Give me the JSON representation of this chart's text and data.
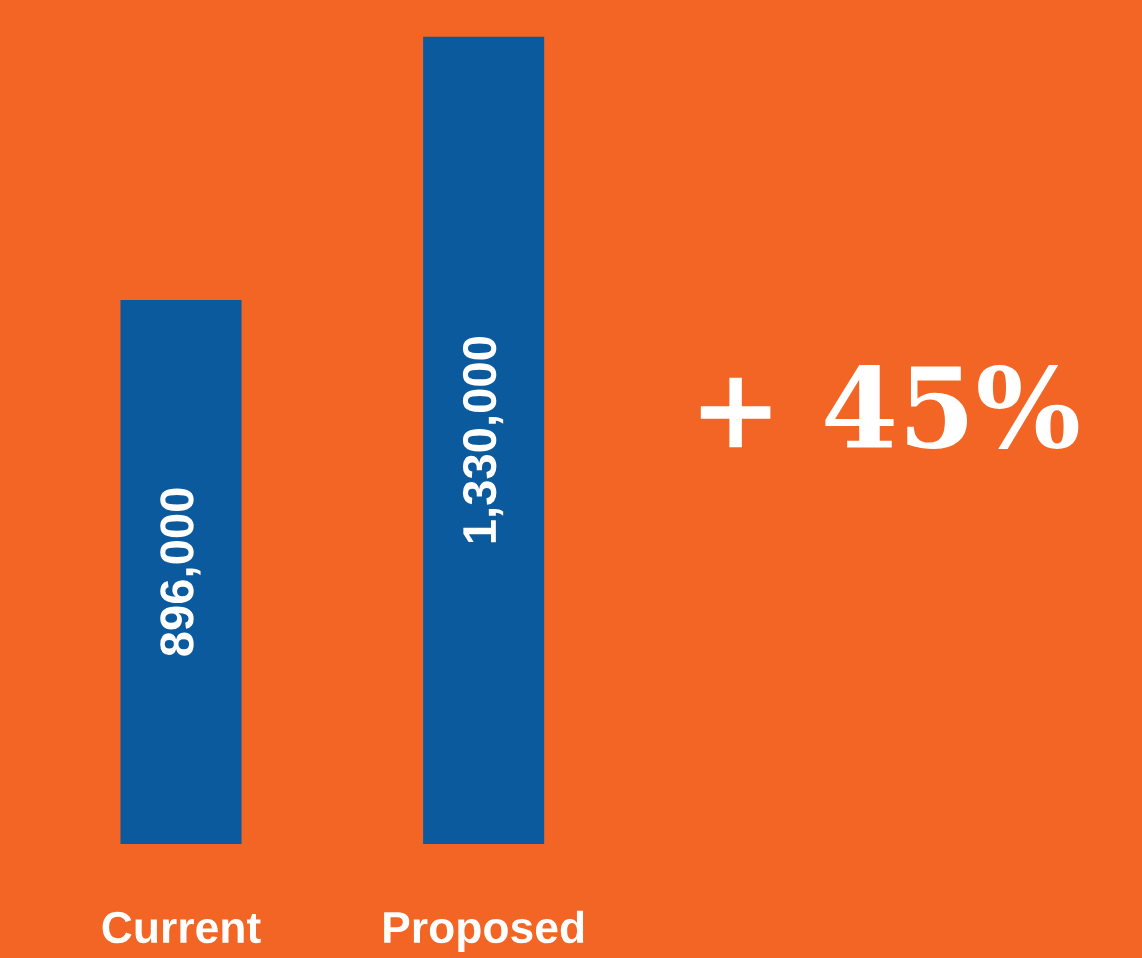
{
  "chart_data": {
    "type": "bar",
    "categories": [
      "Current",
      "Proposed"
    ],
    "values": [
      896000,
      1330000
    ],
    "color": "#0b5a9e",
    "value_labels": [
      "896,000",
      "1,330,000"
    ],
    "tick_labels": "x",
    "grid": false,
    "legend": false,
    "annotations": [
      "+ 45%"
    ]
  }
}
